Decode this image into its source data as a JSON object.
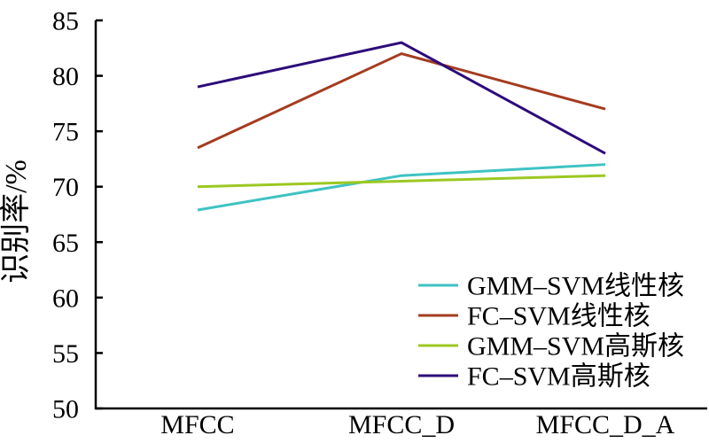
{
  "chart_data": {
    "type": "line",
    "title": "",
    "categories": [
      "MFCC",
      "MFCC_D",
      "MFCC_D_A"
    ],
    "series": [
      {
        "name": "GMM–SVM线性核",
        "color": "#3fc2c3",
        "values": [
          67.9,
          71.0,
          72.0
        ]
      },
      {
        "name": "FC–SVM线性核",
        "color": "#a43c20",
        "values": [
          73.5,
          82.0,
          77.0
        ]
      },
      {
        "name": "GMM–SVM高斯核",
        "color": "#9cc821",
        "values": [
          70.0,
          70.5,
          71.0
        ]
      },
      {
        "name": "FC–SVM高斯核",
        "color": "#2d0b7a",
        "values": [
          79.0,
          83.0,
          73.0
        ]
      }
    ],
    "xlabel": "",
    "ylabel": "识别率/%",
    "ylim": [
      50,
      85
    ],
    "yticks": [
      50,
      55,
      60,
      65,
      70,
      75,
      80,
      85
    ],
    "grid": false,
    "legend_position": "inside-bottom-right",
    "axis_color": "#000000"
  }
}
